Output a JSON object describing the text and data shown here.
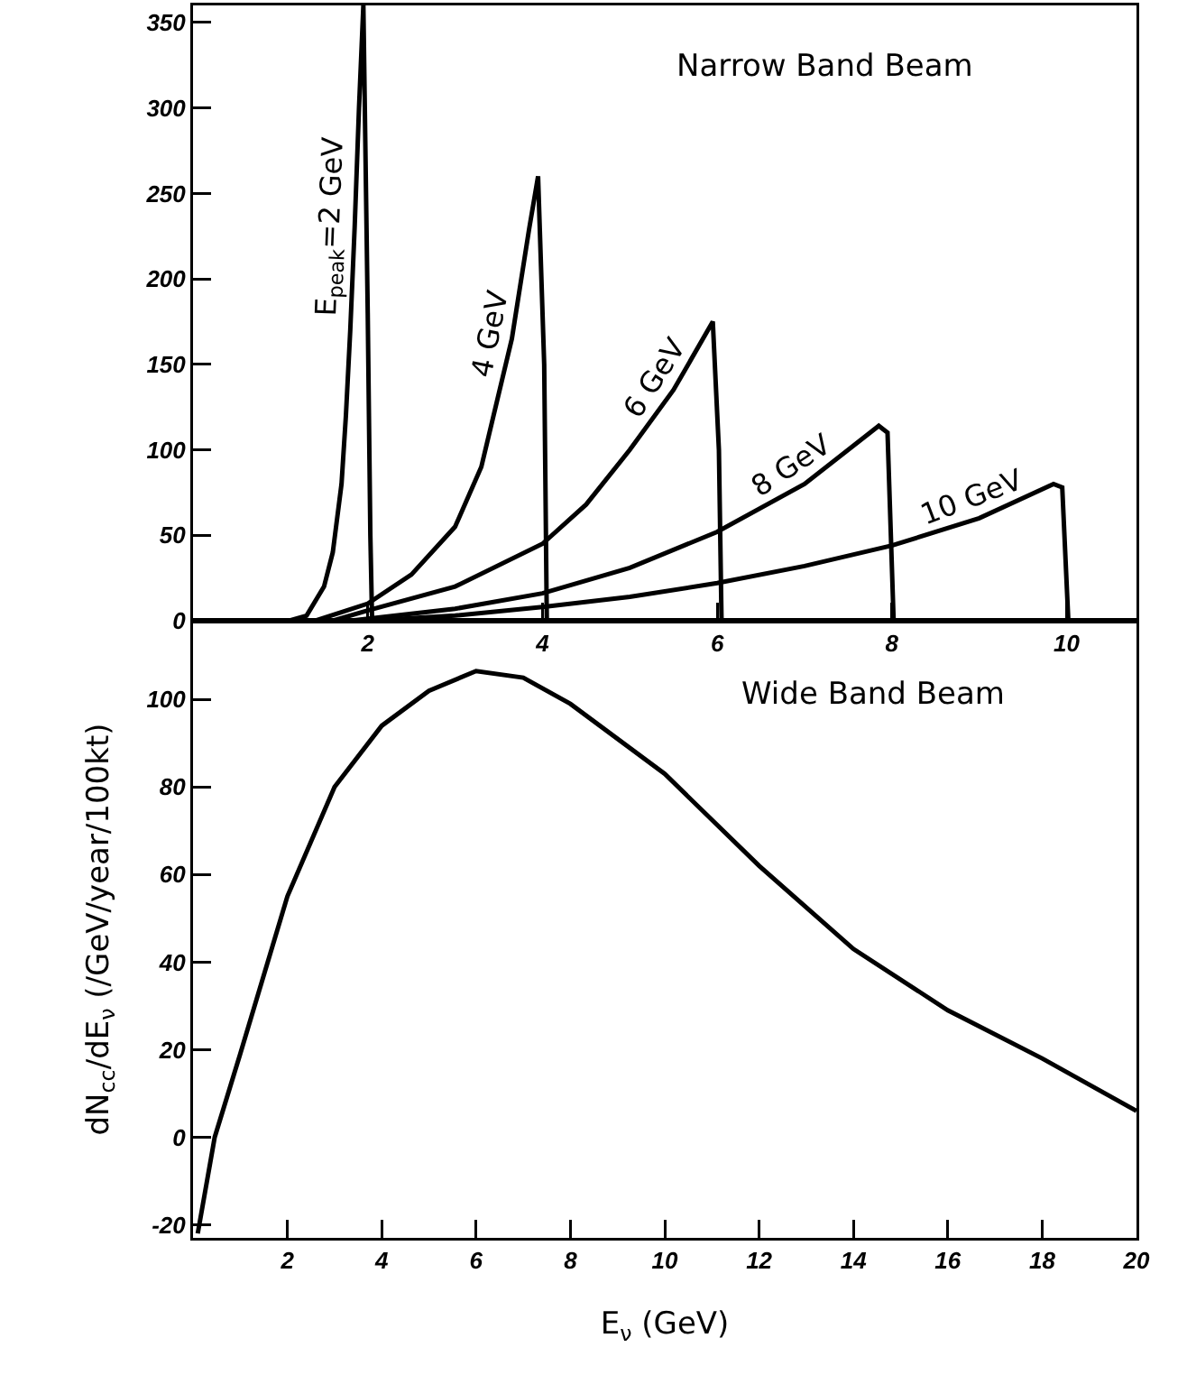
{
  "chart_data": [
    {
      "type": "line",
      "annotations": [
        "Narrow Band Beam"
      ],
      "xlim": [
        0,
        10.8
      ],
      "xticks": [
        2,
        4,
        6,
        8,
        10
      ],
      "ylim": [
        0,
        360
      ],
      "yticks": [
        0,
        50,
        100,
        150,
        200,
        250,
        300,
        350
      ],
      "grid": false,
      "legend": false,
      "marker": "none",
      "line_style": "solid",
      "series": [
        {
          "name": "E$_{peak}$=2 GeV",
          "color": "#000000",
          "x": [
            1.1,
            1.3,
            1.5,
            1.6,
            1.7,
            1.75,
            1.8,
            1.85,
            1.9,
            1.95,
            2.0,
            2.03,
            2.05
          ],
          "values": [
            0,
            3,
            20,
            40,
            80,
            120,
            170,
            230,
            300,
            360,
            180,
            50,
            0
          ]
        },
        {
          "name": "4 GeV",
          "color": "#000000",
          "x": [
            1.4,
            2,
            2.5,
            3,
            3.3,
            3.65,
            3.85,
            3.95,
            4.02,
            4.05
          ],
          "values": [
            0,
            10,
            27,
            55,
            90,
            165,
            230,
            260,
            150,
            0
          ]
        },
        {
          "name": "6 GeV",
          "color": "#000000",
          "x": [
            1.6,
            2,
            3,
            4,
            4.5,
            5,
            5.5,
            5.95,
            6.02,
            6.05
          ],
          "values": [
            0,
            6,
            20,
            45,
            68,
            100,
            135,
            175,
            100,
            0
          ]
        },
        {
          "name": "8 GeV",
          "color": "#000000",
          "x": [
            1.8,
            3,
            4,
            5,
            6,
            7,
            7.85,
            7.95,
            8.02
          ],
          "values": [
            0,
            7,
            16,
            31,
            52,
            80,
            114,
            110,
            0
          ]
        },
        {
          "name": "10 GeV",
          "color": "#000000",
          "x": [
            2,
            3,
            4,
            5,
            6,
            7,
            8,
            9,
            9.85,
            9.95,
            10.02
          ],
          "values": [
            0,
            3,
            8,
            14,
            22,
            32,
            44,
            60,
            80,
            78,
            0
          ]
        }
      ]
    },
    {
      "type": "line",
      "annotations": [
        "Wide Band Beam"
      ],
      "xlabel": "E$_{ν}$ (GeV)",
      "ylabel": "dN$_{cc}$/dE$_{ν}$ (/GeV/year/100kt)",
      "xlim": [
        0,
        20
      ],
      "xticks": [
        2,
        4,
        6,
        8,
        10,
        12,
        14,
        16,
        18,
        20
      ],
      "ylim": [
        -23,
        118
      ],
      "yticks": [
        -20,
        0,
        20,
        40,
        60,
        80,
        100
      ],
      "grid": false,
      "legend": false,
      "marker": "none",
      "line_style": "solid",
      "series": [
        {
          "color": "#000000",
          "x": [
            0.1,
            0.46,
            1,
            2,
            3,
            4,
            5,
            6,
            7,
            8,
            10,
            12,
            14,
            16,
            18,
            20
          ],
          "values": [
            -22,
            0,
            19,
            55,
            80,
            94,
            102,
            106.5,
            105,
            99,
            83,
            62,
            43,
            29,
            18,
            6
          ]
        }
      ]
    }
  ]
}
